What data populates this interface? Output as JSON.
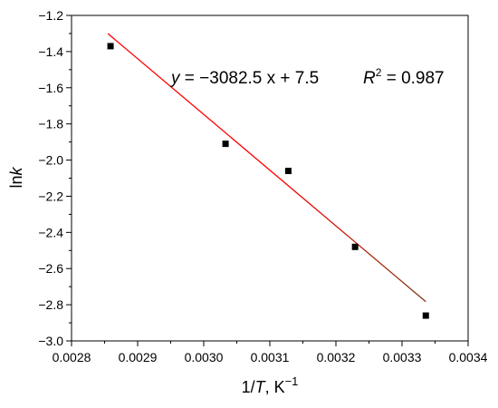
{
  "chart_data": {
    "type": "scatter",
    "x_axis": {
      "label_plain": "1/",
      "label_var": "T",
      "label_unit": ", K",
      "label_sup": "−1",
      "range": [
        0.0028,
        0.0034
      ],
      "ticks": [
        "0.0028",
        "0.0029",
        "0.0030",
        "0.0031",
        "0.0032",
        "0.0033",
        "0.0034"
      ],
      "tick_values": [
        0.0028,
        0.0029,
        0.003,
        0.0031,
        0.0032,
        0.0033,
        0.0034
      ]
    },
    "y_axis": {
      "label_plain": "ln",
      "label_var": "k",
      "range": [
        -3.0,
        -1.2
      ],
      "ticks": [
        "−3.0",
        "−2.8",
        "−2.6",
        "−2.4",
        "−2.2",
        "−2.0",
        "−1.8",
        "−1.6",
        "−1.4",
        "−1.2"
      ],
      "tick_values": [
        -3.0,
        -2.8,
        -2.6,
        -2.4,
        -2.2,
        -2.0,
        -1.8,
        -1.6,
        -1.4,
        -1.2
      ]
    },
    "points": [
      {
        "x": 0.002859,
        "y": -1.37
      },
      {
        "x": 0.003033,
        "y": -1.91
      },
      {
        "x": 0.003128,
        "y": -2.06
      },
      {
        "x": 0.003229,
        "y": -2.48
      },
      {
        "x": 0.003336,
        "y": -2.86
      }
    ],
    "fit": {
      "slope": -3082.5,
      "intercept": 7.5,
      "x_range": [
        0.002855,
        0.003336
      ],
      "color_start": "#ff0000",
      "color_end": "#7a3a12",
      "equation": {
        "y_var": "y",
        "rhs": " = −3082.5 x + 7.5",
        "r_var": "R",
        "r_sup": "2",
        "r_rhs": " = 0.987"
      }
    },
    "marker_color": "#000000",
    "grid": false
  }
}
